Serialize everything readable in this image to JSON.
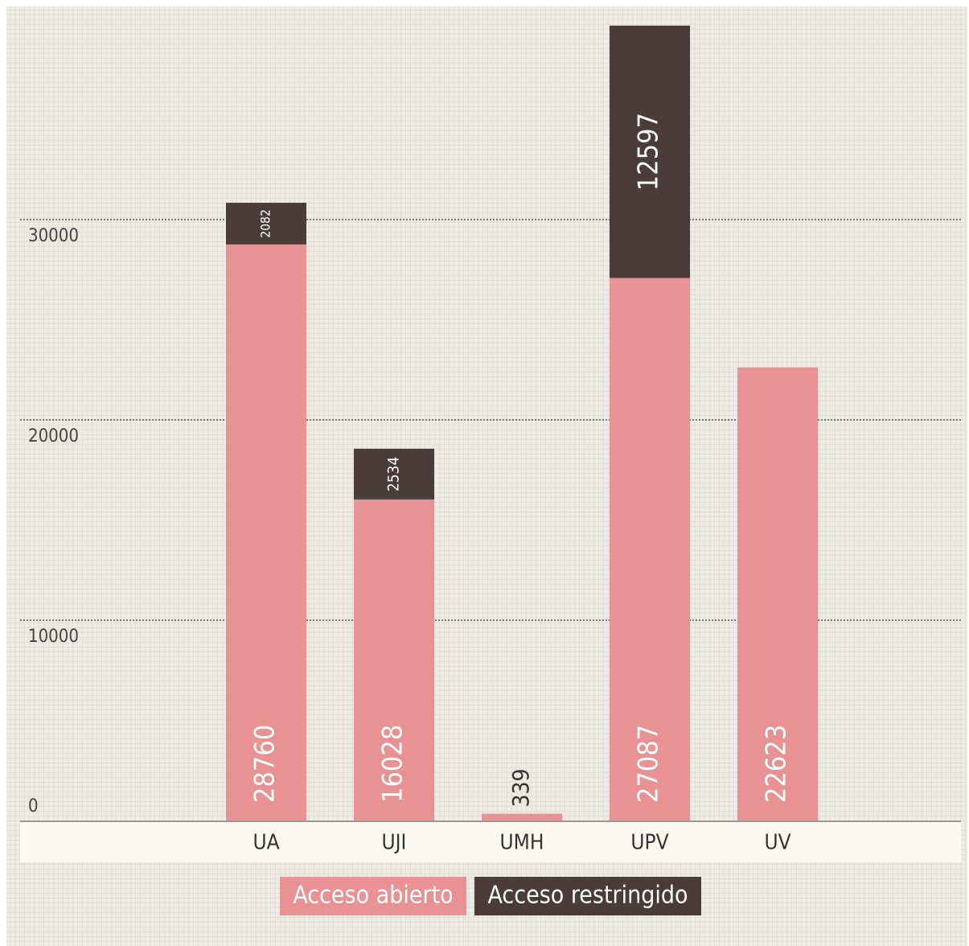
{
  "chart_data": {
    "type": "bar",
    "stacked": true,
    "categories": [
      "UA",
      "UJI",
      "UMH",
      "UPV",
      "UV"
    ],
    "series": [
      {
        "name": "Acceso abierto",
        "color": "#e89294",
        "values": [
          28760,
          16028,
          339,
          27087,
          22623
        ]
      },
      {
        "name": "Acceso restringido",
        "color": "#4a3c3a",
        "values": [
          2082,
          2534,
          null,
          12597,
          null
        ]
      }
    ],
    "ylim": [
      0,
      40000
    ],
    "yticks": [
      0,
      10000,
      20000,
      30000
    ],
    "grid": true,
    "legend": "bottom"
  }
}
